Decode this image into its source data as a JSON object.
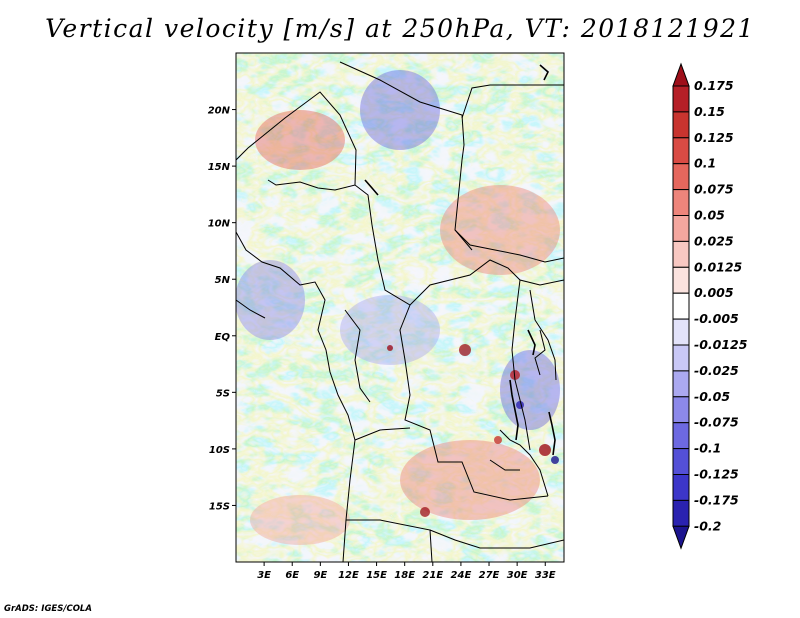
{
  "title": "Vertical velocity [m/s] at 250hPa, VT: 2018121921",
  "credit": "GrADS: IGES/COLA",
  "map": {
    "lat_labels": [
      "20N",
      "15N",
      "10N",
      "5N",
      "EQ",
      "5S",
      "10S",
      "15S"
    ],
    "lat_values": [
      20,
      15,
      10,
      5,
      0,
      -5,
      -10,
      -15
    ],
    "lon_labels": [
      "3E",
      "6E",
      "9E",
      "12E",
      "15E",
      "18E",
      "21E",
      "24E",
      "27E",
      "30E",
      "33E"
    ],
    "lon_values": [
      3,
      6,
      9,
      12,
      15,
      18,
      21,
      24,
      27,
      30,
      33
    ],
    "lon_range": [
      0,
      35
    ],
    "lat_range": [
      -20,
      25
    ]
  },
  "colorbar": {
    "levels": [
      "0.175",
      "0.15",
      "0.125",
      "0.1",
      "0.075",
      "0.05",
      "0.025",
      "0.0125",
      "0.005",
      "-0.005",
      "-0.0125",
      "-0.025",
      "-0.05",
      "-0.075",
      "-0.1",
      "-0.125",
      "-0.175",
      "-0.2"
    ],
    "colors": [
      "#9e0f1a",
      "#b51f27",
      "#c8342f",
      "#d94b44",
      "#e5675d",
      "#ee857b",
      "#f4a79f",
      "#f8c8c2",
      "#fbe3df",
      "#ffffff",
      "#e3e3fa",
      "#c9c8f6",
      "#aba9f0",
      "#8c89ea",
      "#6d69e1",
      "#5450d7",
      "#3c36c9",
      "#2a22b0",
      "#1c148f"
    ]
  }
}
